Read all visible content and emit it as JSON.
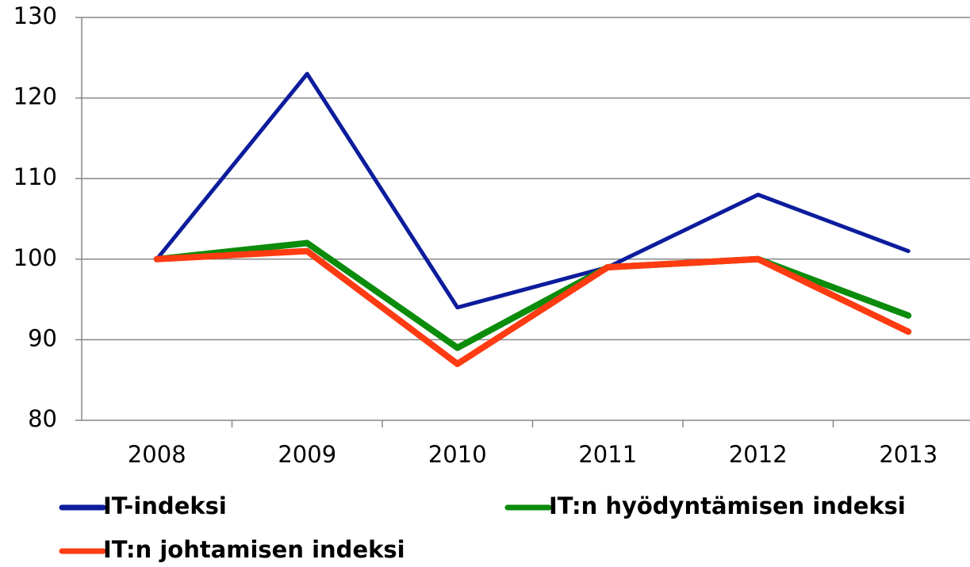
{
  "chart_data": {
    "type": "line",
    "categories": [
      "2008",
      "2009",
      "2010",
      "2011",
      "2012",
      "2013"
    ],
    "series": [
      {
        "name": "IT-indeksi",
        "color": "#0c1c9c",
        "values": [
          100,
          123,
          94,
          99,
          108,
          101
        ]
      },
      {
        "name": "IT:n hyödyntämisen indeksi",
        "color": "#0b8c0b",
        "values": [
          100,
          102,
          89,
          99,
          100,
          93
        ]
      },
      {
        "name": "IT:n johtamisen indeksi",
        "color": "#ff3b12",
        "values": [
          100,
          101,
          87,
          99,
          100,
          91
        ]
      }
    ],
    "ylim": [
      80,
      130
    ],
    "yticks": [
      80,
      90,
      100,
      110,
      120,
      130
    ],
    "grid": true
  }
}
